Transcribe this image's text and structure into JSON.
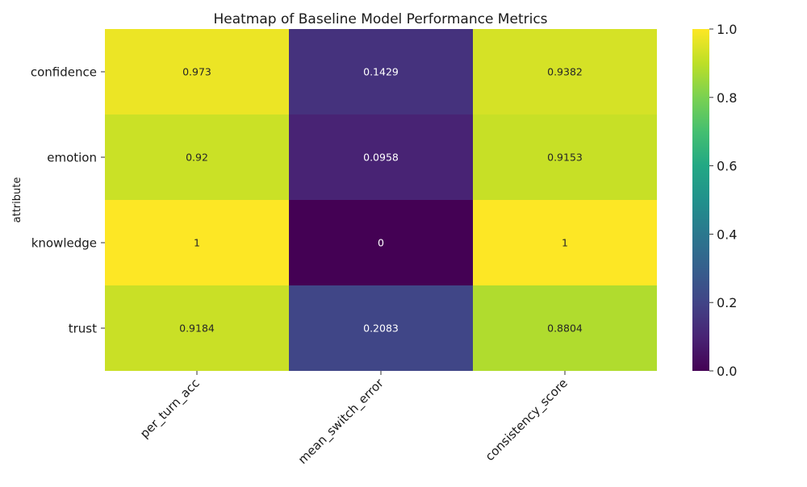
{
  "chart_data": {
    "type": "heatmap",
    "title": "Heatmap of Baseline Model Performance Metrics",
    "xlabel": "",
    "ylabel": "attribute",
    "x_categories": [
      "per_turn_acc",
      "mean_switch_error",
      "consistency_score"
    ],
    "y_categories": [
      "confidence",
      "emotion",
      "knowledge",
      "trust"
    ],
    "values": [
      [
        0.973,
        0.1429,
        0.9382
      ],
      [
        0.92,
        0.0958,
        0.9153
      ],
      [
        1,
        0,
        1
      ],
      [
        0.9184,
        0.2083,
        0.8804
      ]
    ],
    "cell_labels": [
      [
        "0.973",
        "0.1429",
        "0.9382"
      ],
      [
        "0.92",
        "0.0958",
        "0.9153"
      ],
      [
        "1",
        "0",
        "1"
      ],
      [
        "0.9184",
        "0.2083",
        "0.8804"
      ]
    ],
    "colormap": "viridis",
    "colorbar": {
      "range": [
        0.0,
        1.0
      ],
      "ticks": [
        0.0,
        0.2,
        0.4,
        0.6,
        0.8,
        1.0
      ],
      "tick_labels": [
        "0.0",
        "0.2",
        "0.4",
        "0.6",
        "0.8",
        "1.0"
      ]
    },
    "grid": false,
    "legend": "colorbar-right"
  }
}
